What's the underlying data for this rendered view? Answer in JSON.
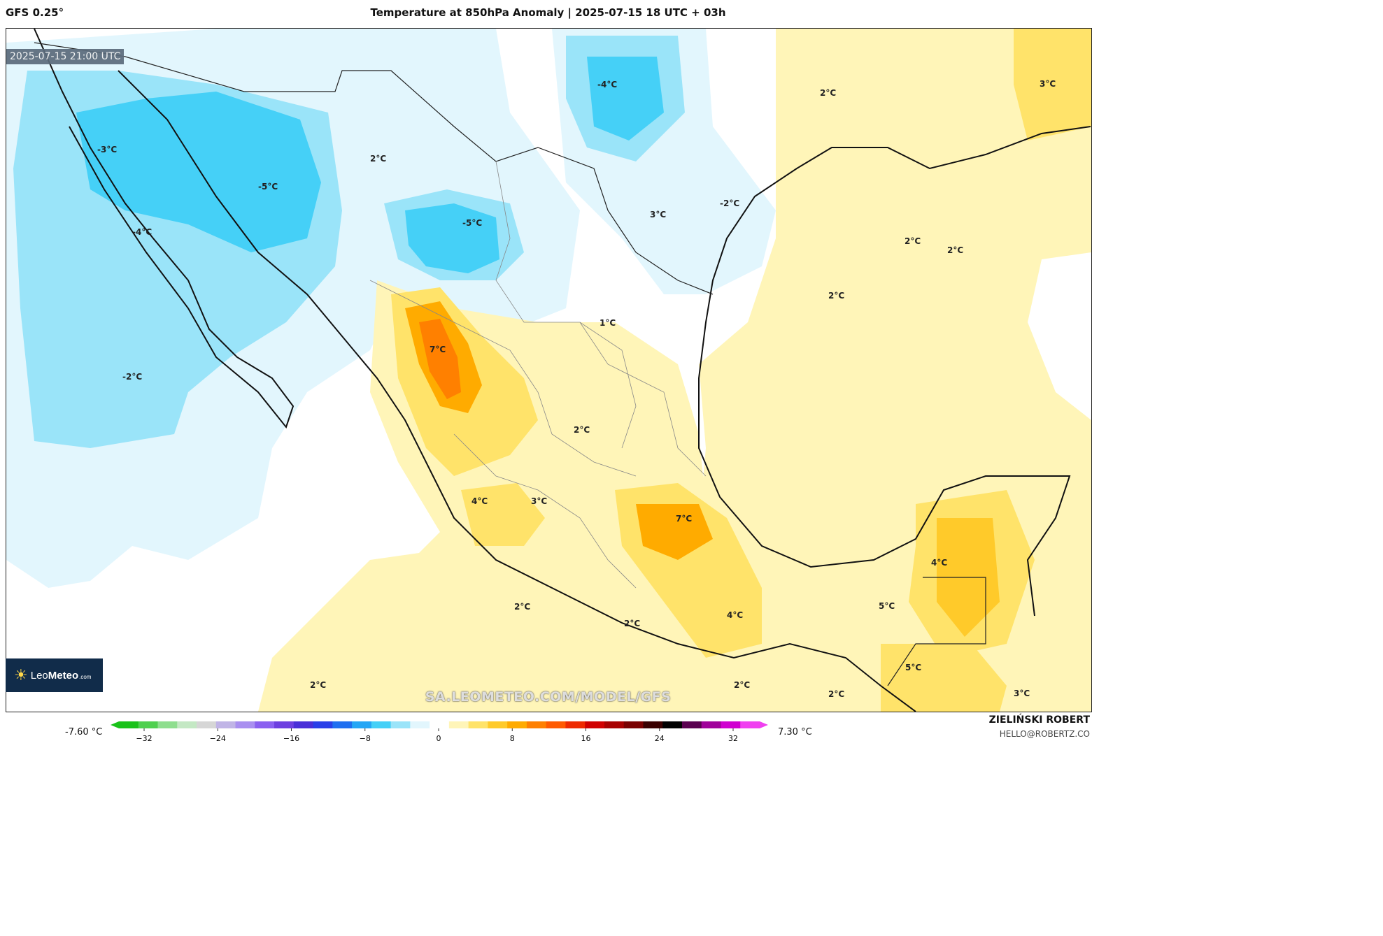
{
  "header": {
    "model": "GFS 0.25°",
    "title": "Temperature at 850hPa Anomaly | 2025-07-15 18 UTC + 03h"
  },
  "map": {
    "valid_time": "2025-07-15 21:00 UTC",
    "watermark": "SA.LEOMETEO.COM/MODEL/GFS",
    "region": "Mexico and Gulf of Mexico",
    "contour_labels": [
      "-3°C",
      "-5°C",
      "-4°C",
      "-2°C",
      "2°C",
      "-5°C",
      "-4°C",
      "3°C",
      "-2°C",
      "2°C",
      "3°C",
      "2°C",
      "2°C",
      "2°C",
      "1°C",
      "7°C",
      "2°C",
      "4°C",
      "3°C",
      "7°C",
      "2°C",
      "2°C",
      "4°C",
      "5°C",
      "4°C",
      "5°C",
      "2°C",
      "2°C",
      "2°C",
      "3°C"
    ]
  },
  "logo": {
    "brand_a": "Leo",
    "brand_b": "Meteo",
    "domain": ".com"
  },
  "colorbar": {
    "min_label": "-7.60 °C",
    "max_label": "7.30 °C",
    "ticks": [
      "−32",
      "−24",
      "−16",
      "−8",
      "0",
      "8",
      "16",
      "24",
      "32"
    ],
    "colors": [
      "#19c219",
      "#4fd04f",
      "#8ede8e",
      "#c4e8c4",
      "#d6d6d6",
      "#c0b4e6",
      "#a98ff0",
      "#8a60f0",
      "#6d3fe0",
      "#4a2fd8",
      "#2a3fe8",
      "#1f6ff0",
      "#25a6f5",
      "#45d0f7",
      "#9ae4f9",
      "#e2f6fd",
      "#ffffff",
      "#fff5b8",
      "#ffe36a",
      "#ffca2a",
      "#ffab00",
      "#ff8000",
      "#ff5a00",
      "#ee2a00",
      "#d00000",
      "#a80000",
      "#7a0000",
      "#3a0000",
      "#000000",
      "#5a0050",
      "#a0009a",
      "#d000d0",
      "#f040f0"
    ]
  },
  "author": {
    "name": "ZIELIŃSKI ROBERT",
    "email": "HELLO@ROBERTZ.CO"
  }
}
